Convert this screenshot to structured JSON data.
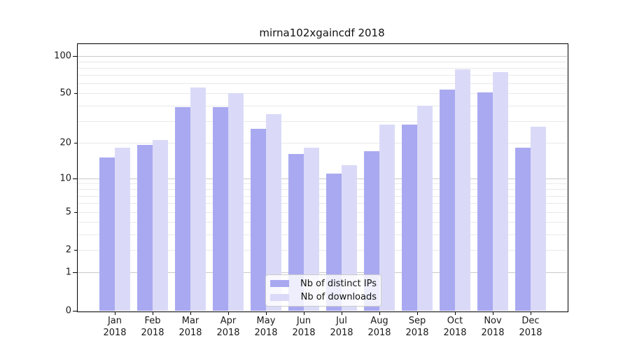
{
  "title": "mirna102xgaincdf 2018",
  "chart_data": {
    "type": "bar",
    "title": "mirna102xgaincdf 2018",
    "categories": [
      "Jan",
      "Feb",
      "Mar",
      "Apr",
      "May",
      "Jun",
      "Jul",
      "Aug",
      "Sep",
      "Oct",
      "Nov",
      "Dec"
    ],
    "year_label": "2018",
    "series": [
      {
        "name": "Nb of distinct IPs",
        "color": "#a9a9f1",
        "values": [
          15,
          19,
          39,
          39,
          26,
          16,
          11,
          17,
          28,
          54,
          51,
          18
        ]
      },
      {
        "name": "Nb of downloads",
        "color": "#dadaf8",
        "values": [
          18,
          21,
          56,
          50,
          34,
          18,
          13,
          28,
          40,
          78,
          74,
          27
        ]
      }
    ],
    "yscale": "log1p",
    "ylim": [
      0,
      125
    ],
    "y_tick_values": [
      0,
      1,
      2,
      5,
      10,
      20,
      50,
      100
    ],
    "y_tick_labels": [
      "0",
      "1",
      "2",
      "5",
      "10",
      "20",
      "50",
      "100"
    ],
    "y_major_gridlines": [
      1,
      10,
      100
    ],
    "y_minor_gridlines": [
      2,
      3,
      4,
      5,
      6,
      7,
      8,
      9,
      20,
      30,
      40,
      50,
      60,
      70,
      80,
      90
    ],
    "grid": true,
    "legend_position": "lower-center"
  },
  "colors": {
    "background": "#ffffff",
    "spine": "#000000",
    "grid_major": "#c9c9c9",
    "grid_minor": "#e9e9e9",
    "text": "#1a1a1a"
  }
}
